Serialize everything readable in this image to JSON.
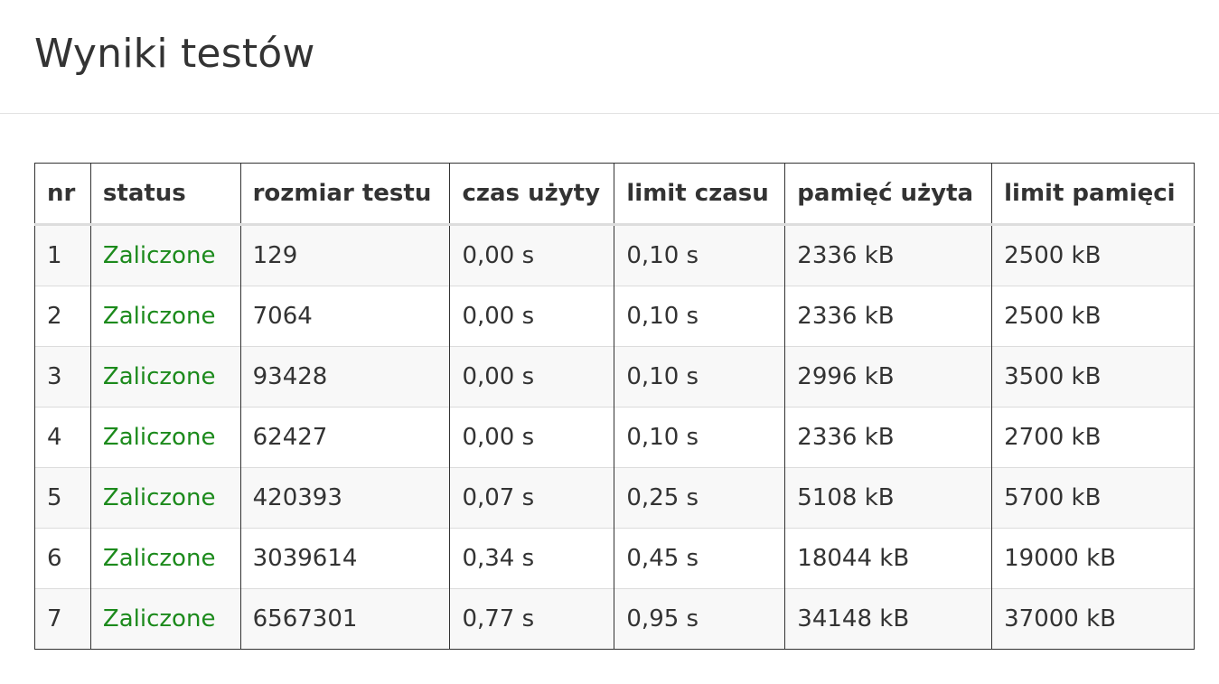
{
  "page": {
    "title": "Wyniki testów"
  },
  "table": {
    "headers": [
      "nr",
      "status",
      "rozmiar testu",
      "czas użyty",
      "limit czasu",
      "pamięć użyta",
      "limit pamięci"
    ],
    "rows": [
      {
        "nr": "1",
        "status": "Zaliczone",
        "size": "129",
        "time_used": "0,00 s",
        "time_limit": "0,10 s",
        "mem_used": "2336 kB",
        "mem_limit": "2500 kB"
      },
      {
        "nr": "2",
        "status": "Zaliczone",
        "size": "7064",
        "time_used": "0,00 s",
        "time_limit": "0,10 s",
        "mem_used": "2336 kB",
        "mem_limit": "2500 kB"
      },
      {
        "nr": "3",
        "status": "Zaliczone",
        "size": "93428",
        "time_used": "0,00 s",
        "time_limit": "0,10 s",
        "mem_used": "2996 kB",
        "mem_limit": "3500 kB"
      },
      {
        "nr": "4",
        "status": "Zaliczone",
        "size": "62427",
        "time_used": "0,00 s",
        "time_limit": "0,10 s",
        "mem_used": "2336 kB",
        "mem_limit": "2700 kB"
      },
      {
        "nr": "5",
        "status": "Zaliczone",
        "size": "420393",
        "time_used": "0,07 s",
        "time_limit": "0,25 s",
        "mem_used": "5108 kB",
        "mem_limit": "5700 kB"
      },
      {
        "nr": "6",
        "status": "Zaliczone",
        "size": "3039614",
        "time_used": "0,34 s",
        "time_limit": "0,45 s",
        "mem_used": "18044 kB",
        "mem_limit": "19000 kB"
      },
      {
        "nr": "7",
        "status": "Zaliczone",
        "size": "6567301",
        "time_used": "0,77 s",
        "time_limit": "0,95 s",
        "mem_used": "34148 kB",
        "mem_limit": "37000 kB"
      }
    ]
  },
  "colors": {
    "status_pass": "#1c8a1c",
    "text": "#333333"
  }
}
